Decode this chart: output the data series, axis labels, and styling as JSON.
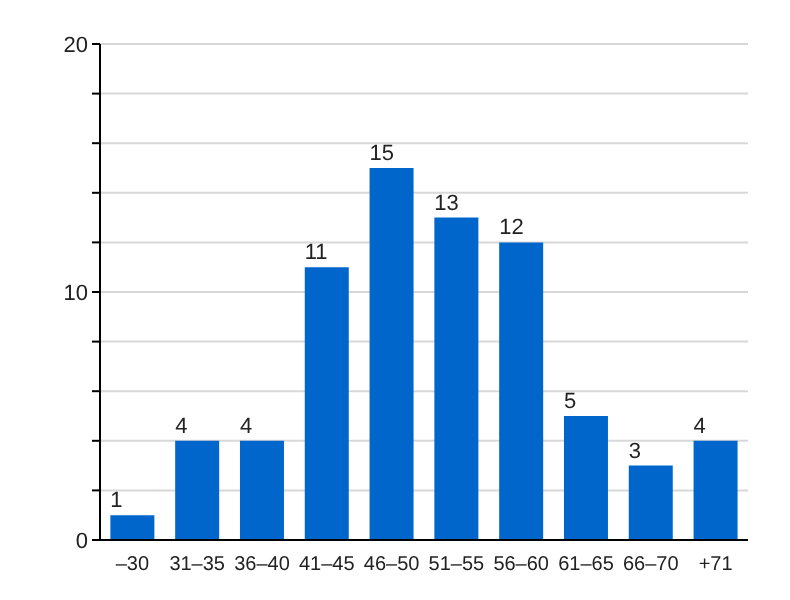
{
  "chart_data": {
    "type": "bar",
    "categories": [
      "–30",
      "31–35",
      "36–40",
      "41–45",
      "46–50",
      "51–55",
      "56–60",
      "61–65",
      "66–70",
      "+71"
    ],
    "values": [
      1,
      4,
      4,
      11,
      15,
      13,
      12,
      5,
      3,
      4
    ],
    "color": "#0066cc",
    "ylim": [
      0,
      20
    ],
    "yticks": [
      0,
      {
        "value": 2,
        "label": null
      },
      {
        "value": 4,
        "label": null
      },
      {
        "value": 6,
        "label": null
      },
      {
        "value": 8,
        "label": null
      },
      10,
      {
        "value": 12,
        "label": null
      },
      {
        "value": 14,
        "label": null
      },
      {
        "value": 16,
        "label": null
      },
      {
        "value": 18,
        "label": null
      },
      20
    ],
    "grid": "y",
    "data_labels": true
  }
}
